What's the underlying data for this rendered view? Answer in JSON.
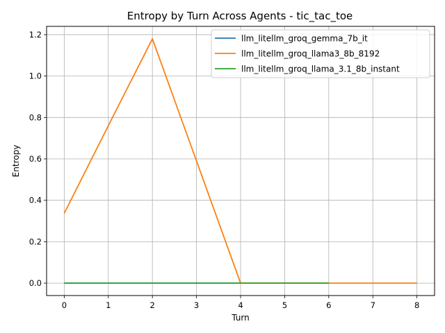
{
  "chart_data": {
    "type": "line",
    "title": "Entropy by Turn Across Agents - tic_tac_toe",
    "xlabel": "Turn",
    "ylabel": "Entropy",
    "xlim": [
      -0.4,
      8.4
    ],
    "ylim": [
      -0.06,
      1.24
    ],
    "xticks": [
      0,
      1,
      2,
      3,
      4,
      5,
      6,
      7,
      8
    ],
    "yticks": [
      0.0,
      0.2,
      0.4,
      0.6,
      0.8,
      1.0,
      1.2
    ],
    "grid": true,
    "legend_position": "top-right",
    "series": [
      {
        "name": "llm_litellm_groq_gemma_7b_it",
        "color": "#1f77b4",
        "x": [
          0,
          1,
          2,
          3,
          4,
          5,
          6
        ],
        "y": [
          0,
          0,
          0,
          0,
          0,
          0,
          0
        ]
      },
      {
        "name": "llm_litellm_groq_llama3_8b_8192",
        "color": "#ff7f0e",
        "x": [
          0,
          1,
          2,
          3,
          4,
          5,
          6,
          7,
          8
        ],
        "y": [
          0.337,
          0.76,
          1.18,
          0.59,
          0,
          0,
          0,
          0,
          0
        ]
      },
      {
        "name": "llm_litellm_groq_llama_3.1_8b_instant",
        "color": "#2ca02c",
        "x": [
          0,
          1,
          2,
          3,
          4,
          5,
          6
        ],
        "y": [
          0,
          0,
          0,
          0,
          0,
          0,
          0
        ]
      }
    ]
  }
}
